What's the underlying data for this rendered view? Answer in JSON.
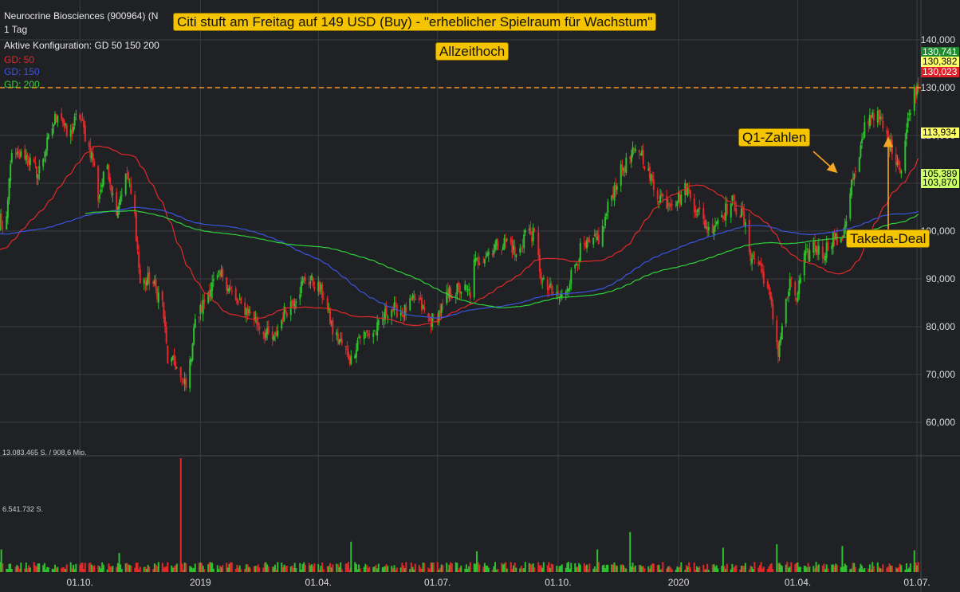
{
  "header": {
    "instrument": "Neurocrine Biosciences (900964) (N",
    "period": "1 Tag",
    "config": "Aktive Konfiguration: GD 50 150 200",
    "legend": [
      {
        "label": "GD: 50",
        "color": "#e02a2a"
      },
      {
        "label": "GD: 150",
        "color": "#3a54e0"
      },
      {
        "label": "GD: 200",
        "color": "#2fd23a"
      }
    ]
  },
  "annotations": {
    "headline": "Citi stuft am Freitag auf 149 USD (Buy) - \"erheblicher Spielraum für Wachstum\"",
    "ath": "Allzeithoch",
    "q1": "Q1-Zahlen",
    "takeda": "Takeda-Deal"
  },
  "price_labels": [
    {
      "text": "130,741",
      "bg": "#1e8c2e",
      "fg": "#ffffff"
    },
    {
      "text": "130,382",
      "bg": "#ffff66",
      "fg": "#000000"
    },
    {
      "text": "130,023",
      "bg": "#e0202a",
      "fg": "#ffffff"
    },
    {
      "text": "113,934",
      "bg": "#ffff66",
      "fg": "#000000"
    },
    {
      "text": "105,389",
      "bg": "#ccff66",
      "fg": "#000000"
    },
    {
      "text": "103,870",
      "bg": "#ccff66",
      "fg": "#000000"
    }
  ],
  "volume_labels": {
    "max": "13.083.465 S. / 908,6 Mio.",
    "mid": "6.541.732 S."
  },
  "colors": {
    "up": "#2fbf2f",
    "down": "#e02a2a",
    "gd50": "#e02a2a",
    "gd150": "#3a54e0",
    "gd200": "#2fd23a",
    "ath_line": "#f59a1a",
    "background": "#1f2124",
    "grid": "#383b40"
  },
  "chart_data": {
    "type": "candlestick",
    "y_ticks": [
      "140,000",
      "130,000",
      "120,000",
      "110,000",
      "100,000",
      "90,000",
      "80,000",
      "70,000",
      "60,000"
    ],
    "y_tick_values": [
      140,
      130,
      120,
      110,
      100,
      90,
      80,
      70,
      60
    ],
    "x_ticks": [
      {
        "label": "01.10.",
        "date": "2018-10-01"
      },
      {
        "label": "2019",
        "date": "2019-01-01"
      },
      {
        "label": "01.04.",
        "date": "2019-04-01"
      },
      {
        "label": "01.07.",
        "date": "2019-07-01"
      },
      {
        "label": "01.10.",
        "date": "2019-10-01"
      },
      {
        "label": "2020",
        "date": "2020-01-01"
      },
      {
        "label": "01.04.",
        "date": "2020-04-01"
      },
      {
        "label": "01.07.",
        "date": "2020-07-01"
      }
    ],
    "x_range": [
      "2018-08-01",
      "2020-07-04"
    ],
    "y_range": [
      55,
      145
    ],
    "allzeithoch_level": 130.0,
    "close_anchors": [
      {
        "date": "2018-08-01",
        "value": 103
      },
      {
        "date": "2018-08-05",
        "value": 97
      },
      {
        "date": "2018-08-09",
        "value": 115
      },
      {
        "date": "2018-08-20",
        "value": 116
      },
      {
        "date": "2018-08-30",
        "value": 112
      },
      {
        "date": "2018-09-08",
        "value": 120
      },
      {
        "date": "2018-09-15",
        "value": 126
      },
      {
        "date": "2018-09-22",
        "value": 119
      },
      {
        "date": "2018-09-30",
        "value": 125
      },
      {
        "date": "2018-10-06",
        "value": 119
      },
      {
        "date": "2018-10-11",
        "value": 115
      },
      {
        "date": "2018-10-15",
        "value": 107
      },
      {
        "date": "2018-10-22",
        "value": 114
      },
      {
        "date": "2018-10-28",
        "value": 104
      },
      {
        "date": "2018-11-06",
        "value": 112
      },
      {
        "date": "2018-11-12",
        "value": 103
      },
      {
        "date": "2018-11-16",
        "value": 89
      },
      {
        "date": "2018-11-24",
        "value": 90
      },
      {
        "date": "2018-12-03",
        "value": 85
      },
      {
        "date": "2018-12-07",
        "value": 73
      },
      {
        "date": "2018-12-13",
        "value": 72
      },
      {
        "date": "2018-12-18",
        "value": 68
      },
      {
        "date": "2018-12-23",
        "value": 69
      },
      {
        "date": "2018-12-27",
        "value": 80
      },
      {
        "date": "2019-01-08",
        "value": 88
      },
      {
        "date": "2019-01-18",
        "value": 91
      },
      {
        "date": "2019-01-28",
        "value": 85
      },
      {
        "date": "2019-02-08",
        "value": 83
      },
      {
        "date": "2019-02-18",
        "value": 79
      },
      {
        "date": "2019-02-26",
        "value": 77
      },
      {
        "date": "2019-03-06",
        "value": 83
      },
      {
        "date": "2019-03-14",
        "value": 86
      },
      {
        "date": "2019-03-22",
        "value": 90
      },
      {
        "date": "2019-03-30",
        "value": 89
      },
      {
        "date": "2019-04-06",
        "value": 86
      },
      {
        "date": "2019-04-12",
        "value": 79
      },
      {
        "date": "2019-04-20",
        "value": 76
      },
      {
        "date": "2019-04-26",
        "value": 73
      },
      {
        "date": "2019-05-02",
        "value": 78
      },
      {
        "date": "2019-05-15",
        "value": 79
      },
      {
        "date": "2019-05-25",
        "value": 84
      },
      {
        "date": "2019-06-05",
        "value": 83
      },
      {
        "date": "2019-06-15",
        "value": 86
      },
      {
        "date": "2019-06-25",
        "value": 81
      },
      {
        "date": "2019-07-03",
        "value": 83
      },
      {
        "date": "2019-07-10",
        "value": 87
      },
      {
        "date": "2019-07-20",
        "value": 88
      },
      {
        "date": "2019-07-26",
        "value": 87
      },
      {
        "date": "2019-07-29",
        "value": 93
      },
      {
        "date": "2019-08-06",
        "value": 95
      },
      {
        "date": "2019-08-15",
        "value": 97
      },
      {
        "date": "2019-08-25",
        "value": 98
      },
      {
        "date": "2019-08-31",
        "value": 94
      },
      {
        "date": "2019-09-06",
        "value": 100
      },
      {
        "date": "2019-09-13",
        "value": 99
      },
      {
        "date": "2019-09-19",
        "value": 89
      },
      {
        "date": "2019-09-27",
        "value": 87
      },
      {
        "date": "2019-10-04",
        "value": 86
      },
      {
        "date": "2019-10-10",
        "value": 90
      },
      {
        "date": "2019-10-18",
        "value": 96
      },
      {
        "date": "2019-10-26",
        "value": 97
      },
      {
        "date": "2019-11-03",
        "value": 99
      },
      {
        "date": "2019-11-09",
        "value": 106
      },
      {
        "date": "2019-11-17",
        "value": 112
      },
      {
        "date": "2019-11-27",
        "value": 116
      },
      {
        "date": "2019-12-03",
        "value": 117
      },
      {
        "date": "2019-12-09",
        "value": 112
      },
      {
        "date": "2019-12-15",
        "value": 108
      },
      {
        "date": "2019-12-23",
        "value": 106
      },
      {
        "date": "2020-01-01",
        "value": 107
      },
      {
        "date": "2020-01-07",
        "value": 109
      },
      {
        "date": "2020-01-12",
        "value": 106
      },
      {
        "date": "2020-01-18",
        "value": 103
      },
      {
        "date": "2020-01-24",
        "value": 100
      },
      {
        "date": "2020-02-01",
        "value": 103
      },
      {
        "date": "2020-02-11",
        "value": 106
      },
      {
        "date": "2020-02-19",
        "value": 103
      },
      {
        "date": "2020-02-25",
        "value": 95
      },
      {
        "date": "2020-03-03",
        "value": 93
      },
      {
        "date": "2020-03-09",
        "value": 88
      },
      {
        "date": "2020-03-13",
        "value": 82
      },
      {
        "date": "2020-03-17",
        "value": 75
      },
      {
        "date": "2020-03-21",
        "value": 82
      },
      {
        "date": "2020-03-26",
        "value": 89
      },
      {
        "date": "2020-03-31",
        "value": 86
      },
      {
        "date": "2020-04-06",
        "value": 94
      },
      {
        "date": "2020-04-13",
        "value": 97
      },
      {
        "date": "2020-04-20",
        "value": 95
      },
      {
        "date": "2020-04-28",
        "value": 99
      },
      {
        "date": "2020-05-04",
        "value": 97
      },
      {
        "date": "2020-05-08",
        "value": 103
      },
      {
        "date": "2020-05-12",
        "value": 110
      },
      {
        "date": "2020-05-17",
        "value": 113
      },
      {
        "date": "2020-05-22",
        "value": 122
      },
      {
        "date": "2020-05-28",
        "value": 125
      },
      {
        "date": "2020-06-03",
        "value": 123
      },
      {
        "date": "2020-06-09",
        "value": 119
      },
      {
        "date": "2020-06-14",
        "value": 116
      },
      {
        "date": "2020-06-19",
        "value": 113
      },
      {
        "date": "2020-06-23",
        "value": 121
      },
      {
        "date": "2020-06-27",
        "value": 128
      },
      {
        "date": "2020-07-02",
        "value": 130.7
      }
    ],
    "last": {
      "value": 130.741,
      "gd50": 113.934,
      "gd150": 105.389,
      "gd200": 103.87
    },
    "volume": {
      "max_shares": 13083465,
      "spikes": [
        {
          "date": "2018-12-17",
          "value": 13083465
        },
        {
          "date": "2018-08-02",
          "value": 2600000
        },
        {
          "date": "2018-10-31",
          "value": 2200000
        },
        {
          "date": "2019-04-26",
          "value": 3500000
        },
        {
          "date": "2019-07-31",
          "value": 2400000
        },
        {
          "date": "2019-10-31",
          "value": 2600000
        },
        {
          "date": "2019-11-25",
          "value": 4600000
        },
        {
          "date": "2020-02-04",
          "value": 2800000
        },
        {
          "date": "2020-03-16",
          "value": 3200000
        },
        {
          "date": "2020-05-05",
          "value": 3000000
        },
        {
          "date": "2020-06-29",
          "value": 2500000
        }
      ]
    }
  }
}
